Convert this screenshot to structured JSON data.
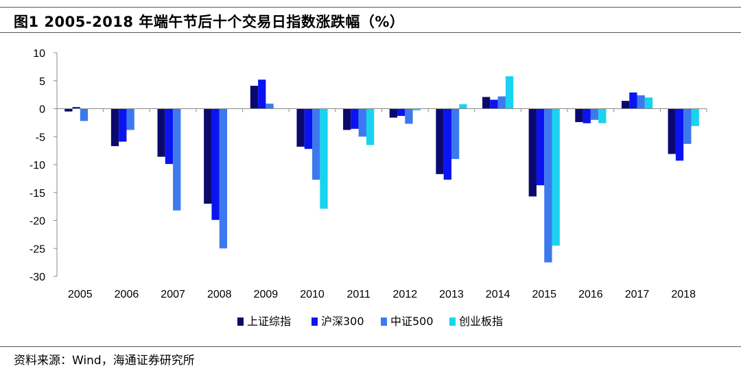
{
  "header": {
    "title": "图1  2005-2018 年端午节后十个交易日指数涨跌幅（%）"
  },
  "footer": {
    "source": "资料来源：Wind，海通证券研究所"
  },
  "chart_data": {
    "type": "bar",
    "title": "图1  2005-2018 年端午节后十个交易日指数涨跌幅（%）",
    "xlabel": "",
    "ylabel": "",
    "ylim": [
      -30,
      10
    ],
    "yticks": [
      10,
      5,
      0,
      -5,
      -10,
      -15,
      -20,
      -25,
      -30
    ],
    "grid": false,
    "legend_position": "bottom",
    "categories": [
      "2005",
      "2006",
      "2007",
      "2008",
      "2009",
      "2010",
      "2011",
      "2012",
      "2013",
      "2014",
      "2015",
      "2016",
      "2017",
      "2018"
    ],
    "series": [
      {
        "name": "上证综指",
        "color": "#0a0a6e",
        "values": [
          -0.5,
          -6.7,
          -8.6,
          -17.0,
          4.1,
          -6.8,
          -3.8,
          -1.6,
          -11.7,
          2.1,
          -15.7,
          -2.4,
          1.4,
          -8.1
        ]
      },
      {
        "name": "沪深300",
        "color": "#0a14f0",
        "values": [
          0.3,
          -5.9,
          -9.9,
          -19.9,
          5.2,
          -7.2,
          -3.6,
          -1.3,
          -12.7,
          1.6,
          -13.7,
          -2.6,
          2.9,
          -9.3
        ]
      },
      {
        "name": "中证500",
        "color": "#3d79ee",
        "values": [
          -2.2,
          -3.8,
          -18.2,
          -25.0,
          0.9,
          -12.7,
          -5.0,
          -2.7,
          -9.0,
          2.2,
          -27.5,
          -2.0,
          2.4,
          -6.3
        ]
      },
      {
        "name": "创业板指",
        "color": "#19d3ef",
        "values": [
          null,
          null,
          null,
          null,
          null,
          -17.9,
          -6.5,
          -0.3,
          0.8,
          5.8,
          -24.5,
          -2.6,
          2.0,
          -3.1
        ]
      }
    ]
  }
}
